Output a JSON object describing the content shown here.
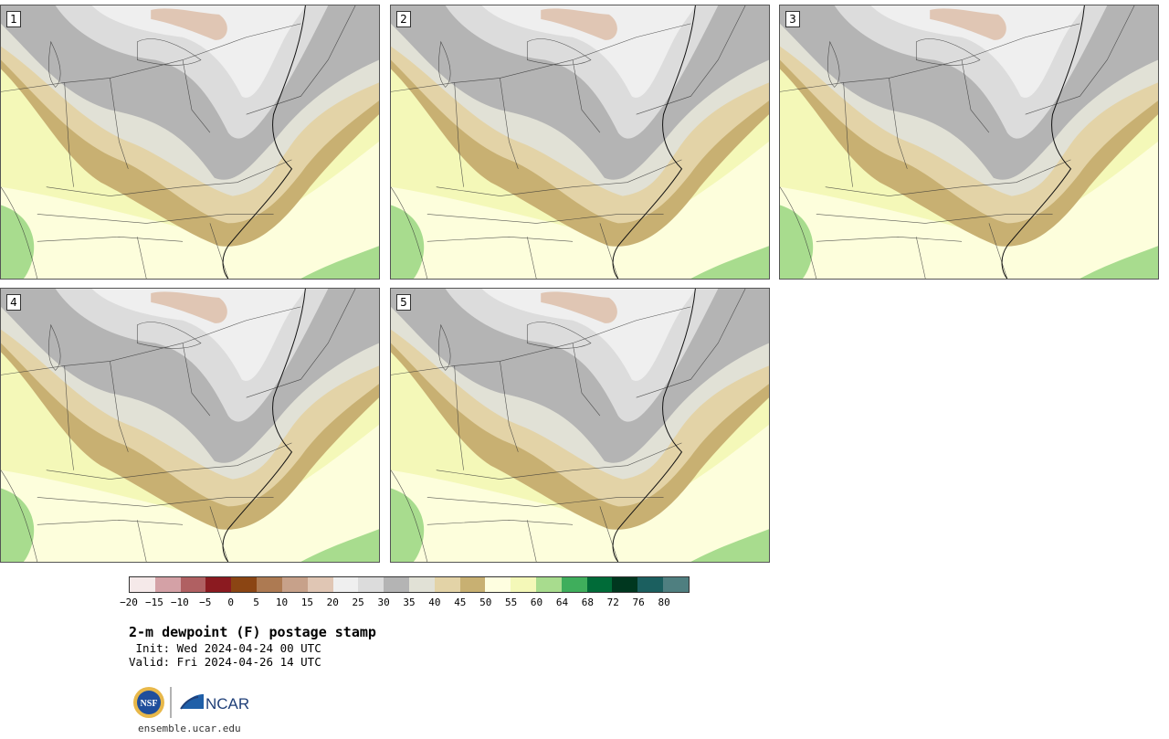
{
  "panels": [
    {
      "label": "1"
    },
    {
      "label": "2"
    },
    {
      "label": "3"
    },
    {
      "label": "4"
    },
    {
      "label": "5"
    }
  ],
  "colorbar": {
    "colors": [
      "#f5e9e9",
      "#d4a1a6",
      "#b06062",
      "#8b1a20",
      "#8b4513",
      "#ad7a52",
      "#c7a18a",
      "#e0c6b4",
      "#efefef",
      "#dcdcdc",
      "#b4b4b4",
      "#e1e1d6",
      "#e3d3a7",
      "#c8b072",
      "#fefee0",
      "#f4f8b8",
      "#a8dc8e",
      "#3fae5c",
      "#006b38",
      "#00371f",
      "#1b5f5f",
      "#4f7f80"
    ],
    "tick_labels": [
      "−20",
      "−15",
      "−10",
      "−5",
      "0",
      "5",
      "10",
      "15",
      "20",
      "25",
      "30",
      "35",
      "40",
      "45",
      "50",
      "55",
      "60",
      "64",
      "68",
      "72",
      "76",
      "80"
    ]
  },
  "title": "2-m dewpoint (F) postage stamp",
  "init": " Init: Wed 2024-04-24 00 UTC",
  "valid": "Valid: Fri 2024-04-26 14 UTC",
  "logos": {
    "nsf": "NSF",
    "ncar": "NCAR"
  },
  "footer_url": "ensemble.ucar.edu"
}
